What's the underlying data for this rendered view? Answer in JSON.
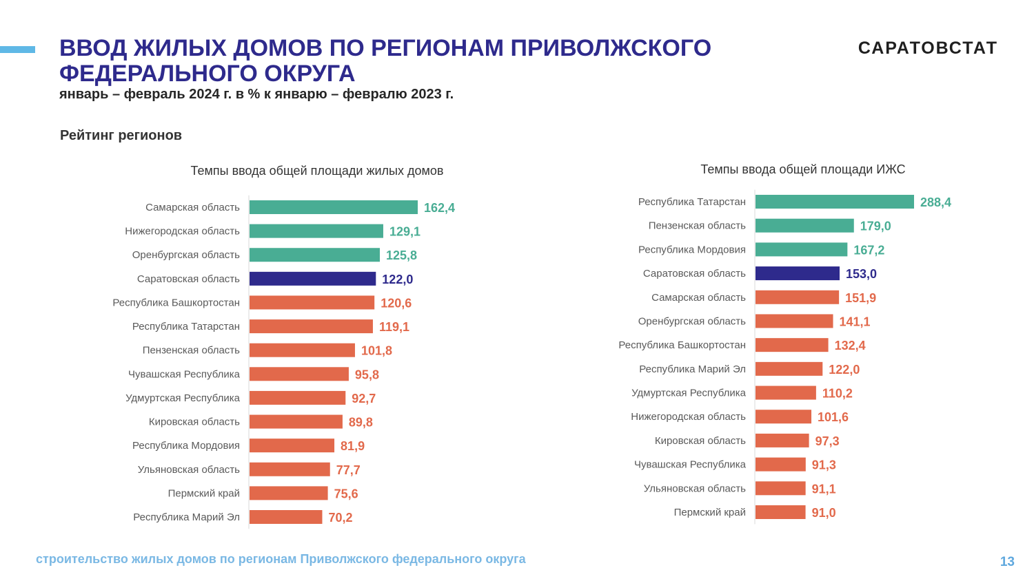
{
  "header": {
    "title": "ВВОД ЖИЛЫХ ДОМОВ ПО РЕГИОНАМ  ПРИВОЛЖСКОГО ФЕДЕРАЛЬНОГО ОКРУГА",
    "subtitle": "январь – февраль 2024 г.  в % к январю – февралю 2023 г.",
    "brand": "САРАТОВСТАТ"
  },
  "section_label": "Рейтинг регионов",
  "footer": {
    "text": "строительство жилых домов по регионам Приволжского федерального округа",
    "page_number": "13"
  },
  "colors": {
    "green": "#49ad94",
    "navy": "#2e2a8c",
    "orange": "#e2694b"
  },
  "chart_data": [
    {
      "type": "bar",
      "orientation": "horizontal",
      "title": "Темпы ввода общей площади жилых домов",
      "categories": [
        "Самарская область",
        "Нижегородская область",
        "Оренбургская область",
        "Саратовская область",
        "Республика Башкортостан",
        "Республика Татарстан",
        "Пензенская область",
        "Чувашская Республика",
        "Удмуртская Республика",
        "Кировская область",
        "Республика Мордовия",
        "Ульяновская область",
        "Пермский край",
        "Республика Марий Эл"
      ],
      "values": [
        162.4,
        129.1,
        125.8,
        122.0,
        120.6,
        119.1,
        101.8,
        95.8,
        92.7,
        89.8,
        81.9,
        77.7,
        75.6,
        70.2
      ],
      "value_labels": [
        "162,4",
        "129,1",
        "125,8",
        "122,0",
        "120,6",
        "119,1",
        "101,8",
        "95,8",
        "92,7",
        "89,8",
        "81,9",
        "77,7",
        "75,6",
        "70,2"
      ],
      "bar_colors": [
        "green",
        "green",
        "green",
        "navy",
        "orange",
        "orange",
        "orange",
        "orange",
        "orange",
        "orange",
        "orange",
        "orange",
        "orange",
        "orange"
      ],
      "xlim": [
        0,
        162.4
      ],
      "grid": false,
      "legend": "none"
    },
    {
      "type": "bar",
      "orientation": "horizontal",
      "title": "Темпы ввода общей площади ИЖС",
      "categories": [
        "Республика Татарстан",
        "Пензенская область",
        "Республика Мордовия",
        "Саратовская область",
        "Самарская область",
        "Оренбургская область",
        "Республика Башкортостан",
        "Республика Марий Эл",
        "Удмуртская Республика",
        "Нижегородская область",
        "Кировская область",
        "Чувашская Республика",
        "Ульяновская область",
        "Пермский край"
      ],
      "values": [
        288.4,
        179.0,
        167.2,
        153.0,
        151.9,
        141.1,
        132.4,
        122.0,
        110.2,
        101.6,
        97.3,
        91.3,
        91.1,
        91.0
      ],
      "value_labels": [
        "288,4",
        "179,0",
        "167,2",
        "153,0",
        "151,9",
        "141,1",
        "132,4",
        "122,0",
        "110,2",
        "101,6",
        "97,3",
        "91,3",
        "91,1",
        "91,0"
      ],
      "bar_colors": [
        "green",
        "green",
        "green",
        "navy",
        "orange",
        "orange",
        "orange",
        "orange",
        "orange",
        "orange",
        "orange",
        "orange",
        "orange",
        "orange"
      ],
      "xlim": [
        0,
        288.4
      ],
      "grid": false,
      "legend": "none"
    }
  ]
}
